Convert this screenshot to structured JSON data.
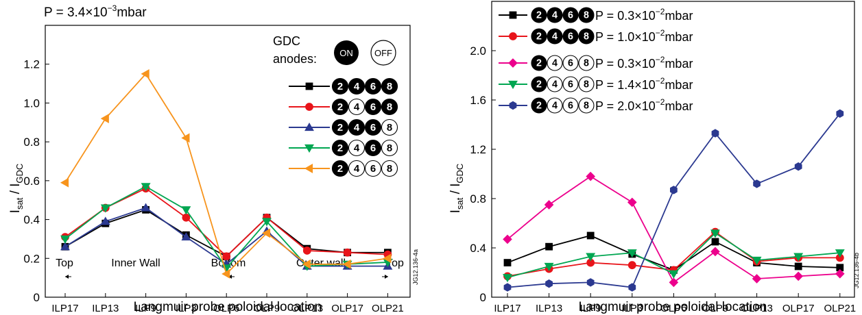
{
  "chart_data": [
    {
      "type": "line",
      "title": "P = 3.4×10",
      "title_exp": "−3",
      "title_unit": "mbar",
      "ylabel_main": "I",
      "ylabel_sub1": "sat",
      "ylabel_mid": " / I",
      "ylabel_sub2": "GDC",
      "xlabel": "Langmuir probe poloidal location",
      "categories": [
        "ILP17",
        "ILP13",
        "ILP9",
        "ILP3",
        "OLP6",
        "OLP9",
        "OLP13",
        "OLP17",
        "OLP21"
      ],
      "ylim": [
        0,
        1.4
      ],
      "yticks": [
        "0",
        "0.2",
        "0.4",
        "0.6",
        "0.8",
        "1.0",
        "1.2"
      ],
      "ytick_values": [
        0,
        0.2,
        0.4,
        0.6,
        0.8,
        1.0,
        1.2
      ],
      "region_labels": [
        "Top",
        "Inner Wall",
        "Bottom",
        "Outer wall",
        "Top"
      ],
      "side_label": "JG12.136-4a",
      "legend_title_line1": "GDC",
      "legend_title_line2": "anodes:",
      "on_label": "ON",
      "off_label": "OFF",
      "series": [
        {
          "color": "#000000",
          "marker": "square",
          "anodes": [
            1,
            1,
            1,
            1
          ],
          "values": [
            0.26,
            0.38,
            0.45,
            0.32,
            0.21,
            0.41,
            0.25,
            0.23,
            0.23
          ]
        },
        {
          "color": "#e8141a",
          "marker": "circle",
          "anodes": [
            1,
            0,
            1,
            1
          ],
          "values": [
            0.31,
            0.46,
            0.56,
            0.41,
            0.21,
            0.41,
            0.24,
            0.23,
            0.22
          ]
        },
        {
          "color": "#2b3990",
          "marker": "triangle-up",
          "anodes": [
            1,
            1,
            1,
            0
          ],
          "values": [
            0.26,
            0.39,
            0.46,
            0.31,
            0.17,
            0.34,
            0.16,
            0.16,
            0.16
          ]
        },
        {
          "color": "#00a651",
          "marker": "triangle-down",
          "anodes": [
            1,
            0,
            1,
            0
          ],
          "values": [
            0.3,
            0.46,
            0.57,
            0.45,
            0.15,
            0.39,
            0.16,
            0.17,
            0.18
          ]
        },
        {
          "color": "#f7941d",
          "marker": "triangle-left",
          "anodes": [
            1,
            0,
            0,
            0
          ],
          "values": [
            0.59,
            0.92,
            1.15,
            0.82,
            0.12,
            0.33,
            0.17,
            0.17,
            0.2
          ]
        }
      ]
    },
    {
      "type": "line",
      "ylabel_main": "I",
      "ylabel_sub1": "sat",
      "ylabel_mid": " / I",
      "ylabel_sub2": "GDC",
      "xlabel": "Langmuir probe poloidal location",
      "categories": [
        "ILP17",
        "ILP13",
        "ILP9",
        "ILP3",
        "OLP6",
        "OLP9",
        "OLP13",
        "OLP17",
        "OLP21"
      ],
      "ylim": [
        0,
        2.4
      ],
      "yticks": [
        "0",
        "0.4",
        "0.8",
        "1.2",
        "1.6",
        "2.0"
      ],
      "ytick_values": [
        0,
        0.4,
        0.8,
        1.2,
        1.6,
        2.0
      ],
      "side_label": "JG12.136-4b",
      "series": [
        {
          "color": "#000000",
          "marker": "square",
          "anodes": [
            1,
            1,
            1,
            1
          ],
          "legend_p": "P = 0.3×10",
          "legend_exp": "−2",
          "legend_unit": "mbar",
          "values": [
            0.28,
            0.41,
            0.5,
            0.35,
            0.22,
            0.45,
            0.28,
            0.25,
            0.24
          ]
        },
        {
          "color": "#e8141a",
          "marker": "circle",
          "anodes": [
            1,
            1,
            1,
            1
          ],
          "legend_p": "P = 1.0×10",
          "legend_exp": "−2",
          "legend_unit": "mbar",
          "values": [
            0.17,
            0.23,
            0.28,
            0.26,
            0.22,
            0.53,
            0.29,
            0.32,
            0.32
          ]
        },
        {
          "color": "#ec008c",
          "marker": "diamond",
          "anodes": [
            1,
            0,
            0,
            0
          ],
          "legend_p": "P = 0.3×10",
          "legend_exp": "−2",
          "legend_unit": "mbar",
          "values": [
            0.47,
            0.75,
            0.98,
            0.77,
            0.12,
            0.37,
            0.15,
            0.17,
            0.19
          ]
        },
        {
          "color": "#00a651",
          "marker": "triangle-down",
          "anodes": [
            1,
            0,
            0,
            0
          ],
          "legend_p": "P = 1.4×10",
          "legend_exp": "−2",
          "legend_unit": "mbar",
          "values": [
            0.16,
            0.25,
            0.33,
            0.36,
            0.19,
            0.52,
            0.3,
            0.33,
            0.36
          ]
        },
        {
          "color": "#2b3990",
          "marker": "hexagon",
          "anodes": [
            1,
            0,
            0,
            0
          ],
          "legend_p": "P = 2.0×10",
          "legend_exp": "−2",
          "legend_unit": "mbar",
          "values": [
            0.08,
            0.11,
            0.12,
            0.08,
            0.87,
            1.33,
            0.92,
            1.06,
            1.49
          ]
        }
      ]
    }
  ]
}
